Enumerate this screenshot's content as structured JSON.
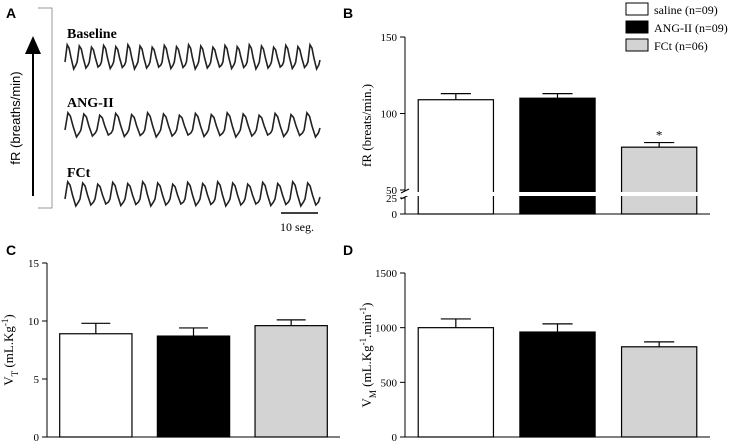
{
  "colors": {
    "saline": "#ffffff",
    "ang_ii": "#000000",
    "fct": "#d3d3d3",
    "axis": "#000000"
  },
  "legend": [
    {
      "label": "saline (n=09)",
      "color": "#ffffff"
    },
    {
      "label": "ANG-II (n=09)",
      "color": "#000000"
    },
    {
      "label": "FCt (n=06)",
      "color": "#d3d3d3"
    }
  ],
  "panel_a": {
    "letter": "A",
    "ylabel": "fR (breaths/min)",
    "traces": [
      {
        "label": "Baseline",
        "cycles": 21
      },
      {
        "label": "ANG-II",
        "cycles": 16
      },
      {
        "label": "FCt",
        "cycles": 17
      }
    ],
    "scale_label": "10 seg."
  },
  "chart_data": [
    {
      "panel": "B",
      "type": "bar",
      "categories": [
        "saline (n=09)",
        "ANG-II (n=09)",
        "FCt (n=06)"
      ],
      "values": [
        109,
        110,
        78
      ],
      "errors": [
        4,
        3,
        3
      ],
      "ylabel": "fR (breats/min.)",
      "ylim": [
        0,
        150
      ],
      "axis_break": [
        25,
        50
      ],
      "yticks": [
        "0",
        "25",
        "50",
        "100",
        "150"
      ],
      "annotations": [
        {
          "category": "FCt (n=06)",
          "text": "*"
        }
      ],
      "grid": false
    },
    {
      "panel": "C",
      "type": "bar",
      "categories": [
        "saline (n=09)",
        "ANG-II (n=09)",
        "FCt (n=06)"
      ],
      "values": [
        8.9,
        8.7,
        9.6
      ],
      "errors": [
        0.9,
        0.7,
        0.5
      ],
      "ylabel": "V_T (mL.Kg^-1)",
      "ylim": [
        0,
        15
      ],
      "yticks": [
        "0",
        "5",
        "10",
        "15"
      ],
      "grid": false
    },
    {
      "panel": "D",
      "type": "bar",
      "categories": [
        "saline (n=09)",
        "ANG-II (n=09)",
        "FCt (n=06)"
      ],
      "values": [
        1000,
        960,
        825
      ],
      "errors": [
        80,
        75,
        45
      ],
      "ylabel": "V_M (mL.Kg^-1.min^-1)",
      "ylim": [
        0,
        1500
      ],
      "yticks": [
        "0",
        "500",
        "1000",
        "1500"
      ],
      "grid": false
    }
  ]
}
